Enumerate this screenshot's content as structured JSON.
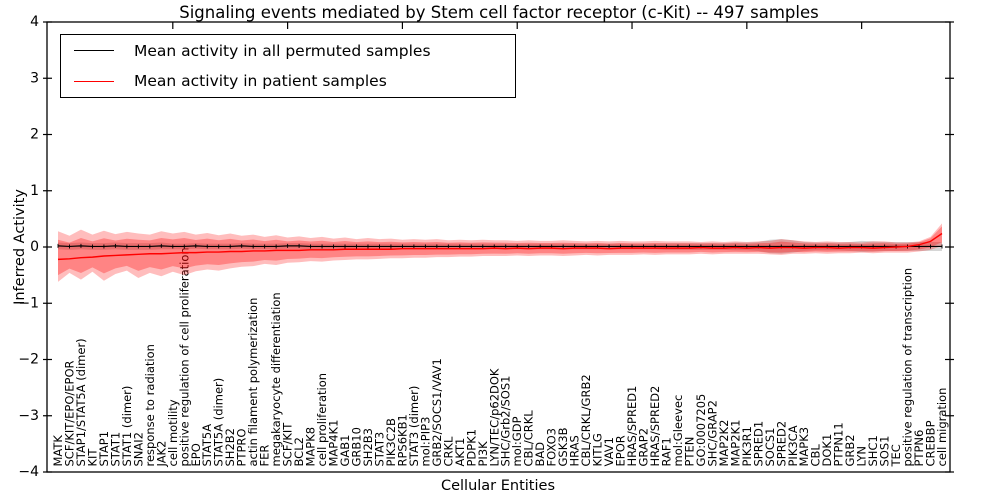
{
  "chart_data": {
    "type": "line",
    "title": "Signaling events mediated by Stem cell factor receptor (c-Kit) -- 497 samples",
    "xlabel": "Cellular Entities",
    "ylabel": "Inferred Activity",
    "ylim": [
      -4,
      4
    ],
    "yticks": [
      -4,
      -3,
      -2,
      -1,
      0,
      1,
      2,
      3,
      4
    ],
    "grid": false,
    "legend_position": "upper left",
    "colors": {
      "permuted": "#000000",
      "patient": "#ff0000",
      "permuted_band": "#999999",
      "patient_band": "#ff0000"
    },
    "categories": [
      "MATK",
      "SCF/KIT/EPO/EPOR",
      "STAP1/STAT5A (dimer)",
      "KIT",
      "STAP1",
      "STAT1",
      "STAT1 (dimer)",
      "SNAI2",
      "response to radiation",
      "JAK2",
      "cell motility",
      "positive regulation of cell proliferation",
      "EPO",
      "STAT5A",
      "STAT5A (dimer)",
      "SH2B2",
      "PTPRO",
      "actin filament polymerization",
      "FER",
      "megakaryocyte differentiation",
      "SCF/KIT",
      "BCL2",
      "MAPK8",
      "cell proliferation",
      "MAP4K1",
      "GAB1",
      "GRB10",
      "SH2B3",
      "STAT3",
      "PIK3C2B",
      "RPS6KB1",
      "STAT3 (dimer)",
      "mol:PIP3",
      "GRB2/SOCS1/VAV1",
      "CRKL",
      "AKT1",
      "PDPK1",
      "PI3K",
      "LYN/TEC/p62DOK",
      "SHC/Grb2/SOS1",
      "mol:GDP",
      "CBL/CRKL",
      "BAD",
      "FOXO3",
      "GSK3B",
      "HRAS",
      "CBL/CRKL/GRB2",
      "KITLG",
      "VAV1",
      "EPOR",
      "HRAS/SPRED1",
      "GRAP2",
      "HRAS/SPRED2",
      "RAF1",
      "mol:Gleevec",
      "PTEN",
      "GO:0007205",
      "SHC/GRAP2",
      "MAP2K2",
      "MAP2K1",
      "PIK3R1",
      "SPRED1",
      "SOCS1",
      "SPRED2",
      "PIK3CA",
      "MAPK3",
      "CBL",
      "DOK1",
      "PTPN11",
      "GRB2",
      "LYN",
      "SHC1",
      "SOS1",
      "TEC",
      "positive regulation of transcription",
      "PTPN6",
      "CREBBP",
      "cell migration"
    ],
    "series": [
      {
        "name": "Mean activity in all permuted samples",
        "color": "#000000",
        "values": [
          0.02,
          0.01,
          0.02,
          0.01,
          0.01,
          0.02,
          0.01,
          0.01,
          0.01,
          0.02,
          0.01,
          0.01,
          0.02,
          0.01,
          0.01,
          0.01,
          0.02,
          0.01,
          0.01,
          0.01,
          0.02,
          0.02,
          0.01,
          0.01,
          0.01,
          0.01,
          0.01,
          0.01,
          0.01,
          0.01,
          0.01,
          0.01,
          0.01,
          0.01,
          0.01,
          0.01,
          0.01,
          0.01,
          0.01,
          0.01,
          0.01,
          0.01,
          0.01,
          0.01,
          0.01,
          0.01,
          0.01,
          0.01,
          0.01,
          0.01,
          0.01,
          0.01,
          0.01,
          0.01,
          0.01,
          0.01,
          0.01,
          0.01,
          0.01,
          0.01,
          0.01,
          0.01,
          0.01,
          0.01,
          0.01,
          0.01,
          0.01,
          0.01,
          0.01,
          0.01,
          0.01,
          0.01,
          0.01,
          0.01,
          0.01,
          0.01,
          0.01,
          0.01
        ],
        "band_halfwidth": [
          0.06,
          0.06,
          0.06,
          0.06,
          0.06,
          0.06,
          0.06,
          0.06,
          0.06,
          0.06,
          0.05,
          0.05,
          0.05,
          0.05,
          0.05,
          0.05,
          0.05,
          0.05,
          0.05,
          0.05,
          0.05,
          0.05,
          0.05,
          0.05,
          0.05,
          0.05,
          0.05,
          0.05,
          0.05,
          0.05,
          0.05,
          0.05,
          0.05,
          0.05,
          0.05,
          0.05,
          0.05,
          0.05,
          0.05,
          0.05,
          0.05,
          0.05,
          0.05,
          0.05,
          0.05,
          0.05,
          0.05,
          0.05,
          0.05,
          0.05,
          0.05,
          0.05,
          0.05,
          0.06,
          0.06,
          0.06,
          0.06,
          0.06,
          0.06,
          0.07,
          0.07,
          0.08,
          0.12,
          0.13,
          0.11,
          0.08,
          0.07,
          0.07,
          0.07,
          0.08,
          0.1,
          0.09,
          0.08,
          0.08,
          0.08,
          0.08,
          0.08,
          0.08
        ]
      },
      {
        "name": "Mean activity in patient samples",
        "color": "#ff0000",
        "values": [
          -0.22,
          -0.21,
          -0.19,
          -0.18,
          -0.16,
          -0.15,
          -0.14,
          -0.13,
          -0.12,
          -0.12,
          -0.11,
          -0.1,
          -0.1,
          -0.09,
          -0.09,
          -0.08,
          -0.08,
          -0.07,
          -0.07,
          -0.06,
          -0.06,
          -0.06,
          -0.05,
          -0.05,
          -0.05,
          -0.04,
          -0.04,
          -0.04,
          -0.04,
          -0.04,
          -0.03,
          -0.03,
          -0.03,
          -0.03,
          -0.03,
          -0.03,
          -0.03,
          -0.03,
          -0.02,
          -0.03,
          -0.02,
          -0.03,
          -0.02,
          -0.02,
          -0.03,
          -0.02,
          -0.02,
          -0.02,
          -0.03,
          -0.02,
          -0.02,
          -0.02,
          -0.02,
          -0.02,
          -0.02,
          -0.02,
          -0.01,
          -0.02,
          -0.02,
          -0.01,
          -0.02,
          -0.01,
          -0.02,
          -0.01,
          -0.01,
          -0.02,
          -0.01,
          -0.01,
          -0.02,
          -0.01,
          -0.01,
          -0.02,
          -0.01,
          0.0,
          0.01,
          0.04,
          0.1,
          0.24
        ],
        "band_upper": [
          0.28,
          0.2,
          0.31,
          0.22,
          0.29,
          0.23,
          0.27,
          0.24,
          0.22,
          0.28,
          0.24,
          0.27,
          0.22,
          0.25,
          0.21,
          0.24,
          0.2,
          0.22,
          0.18,
          0.21,
          0.17,
          0.19,
          0.16,
          0.18,
          0.15,
          0.17,
          0.14,
          0.16,
          0.14,
          0.15,
          0.13,
          0.14,
          0.13,
          0.14,
          0.12,
          0.13,
          0.12,
          0.13,
          0.12,
          0.12,
          0.11,
          0.12,
          0.11,
          0.11,
          0.12,
          0.11,
          0.1,
          0.11,
          0.1,
          0.11,
          0.1,
          0.1,
          0.11,
          0.1,
          0.1,
          0.1,
          0.09,
          0.1,
          0.09,
          0.1,
          0.09,
          0.1,
          0.11,
          0.14,
          0.12,
          0.1,
          0.09,
          0.1,
          0.09,
          0.09,
          0.08,
          0.1,
          0.1,
          0.08,
          0.08,
          0.1,
          0.18,
          0.42
        ],
        "band_lower": [
          -0.62,
          -0.46,
          -0.58,
          -0.44,
          -0.6,
          -0.48,
          -0.42,
          -0.55,
          -0.46,
          -0.52,
          -0.44,
          -0.5,
          -0.43,
          -0.4,
          -0.42,
          -0.38,
          -0.35,
          -0.34,
          -0.3,
          -0.32,
          -0.28,
          -0.27,
          -0.25,
          -0.26,
          -0.24,
          -0.23,
          -0.22,
          -0.22,
          -0.21,
          -0.2,
          -0.2,
          -0.19,
          -0.19,
          -0.18,
          -0.18,
          -0.17,
          -0.17,
          -0.16,
          -0.16,
          -0.16,
          -0.15,
          -0.16,
          -0.15,
          -0.15,
          -0.16,
          -0.15,
          -0.14,
          -0.15,
          -0.14,
          -0.14,
          -0.14,
          -0.13,
          -0.14,
          -0.13,
          -0.13,
          -0.13,
          -0.12,
          -0.13,
          -0.12,
          -0.12,
          -0.12,
          -0.12,
          -0.13,
          -0.14,
          -0.12,
          -0.12,
          -0.11,
          -0.12,
          -0.11,
          -0.11,
          -0.1,
          -0.11,
          -0.1,
          -0.1,
          -0.1,
          -0.08,
          -0.05,
          0.02
        ]
      }
    ]
  }
}
